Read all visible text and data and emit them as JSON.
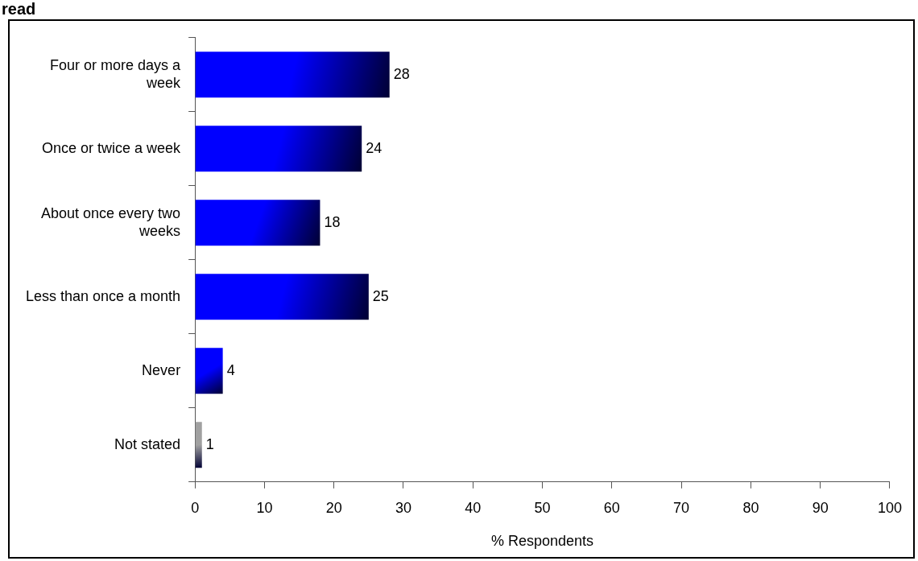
{
  "chart_data": {
    "type": "bar",
    "orientation": "horizontal",
    "title": "read",
    "xlabel": "% Respondents",
    "categories": [
      "Four or more days a week",
      "Once or twice a week",
      "About once every two weeks",
      "Less than once a month",
      "Never",
      "Not stated"
    ],
    "values": [
      28,
      24,
      18,
      25,
      4,
      1
    ],
    "colors": [
      "#0000ff",
      "#0000ff",
      "#0000ff",
      "#0000ff",
      "#0000ff",
      "#a0a0a0"
    ],
    "xlim": [
      0,
      100
    ],
    "xticks": [
      0,
      10,
      20,
      30,
      40,
      50,
      60,
      70,
      80,
      90,
      100
    ],
    "grid": false,
    "legend": false,
    "data_labels": true
  }
}
